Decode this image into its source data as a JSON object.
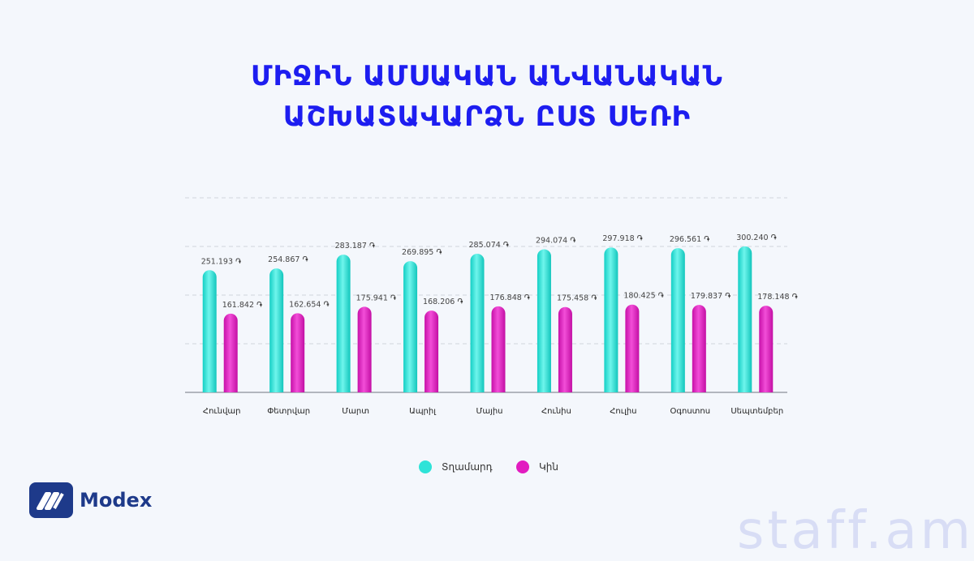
{
  "title_line1": "ՄԻՋԻՆ ԱՄՍԱԿԱՆ ԱՆՎԱՆԱԿԱՆ",
  "title_line2": "ԱՇԽԱՏԱՎԱՐՁՆ ԸՍՏ ՍԵՌԻ",
  "colors": {
    "male": "#2ee3d8",
    "female": "#e21cc0",
    "title": "#1d1df0"
  },
  "legend": {
    "male": "Տղամարդ",
    "female": "Կին"
  },
  "logo": {
    "text": "Modex",
    "icon": "modex-logo-icon"
  },
  "watermark": "staff.am",
  "currency": "֏",
  "chart_data": {
    "type": "bar",
    "categories": [
      "Հունվար",
      "Փետրվար",
      "Մարտ",
      "Ապրիլ",
      "Մայիս",
      "Հունիս",
      "Հուլիս",
      "Օգոստոս",
      "Սեպտեմբեր"
    ],
    "series": [
      {
        "name": "Տղամարդ",
        "values": [
          251193,
          254867,
          283187,
          269895,
          285074,
          294074,
          297918,
          296561,
          300240
        ],
        "labels": [
          "251.193",
          "254.867",
          "283.187",
          "269.895",
          "285.074",
          "294.074",
          "297.918",
          "296.561",
          "300.240"
        ]
      },
      {
        "name": "Կին",
        "values": [
          161842,
          162654,
          175941,
          168206,
          176848,
          175458,
          180425,
          179837,
          178148
        ],
        "labels": [
          "161.842",
          "162.654",
          "175.941",
          "168.206",
          "176.848",
          "175.458",
          "180.425",
          "179.837",
          "178.148"
        ]
      }
    ],
    "ylim": [
      0,
      400000
    ],
    "grid": true,
    "legend_position": "bottom"
  }
}
